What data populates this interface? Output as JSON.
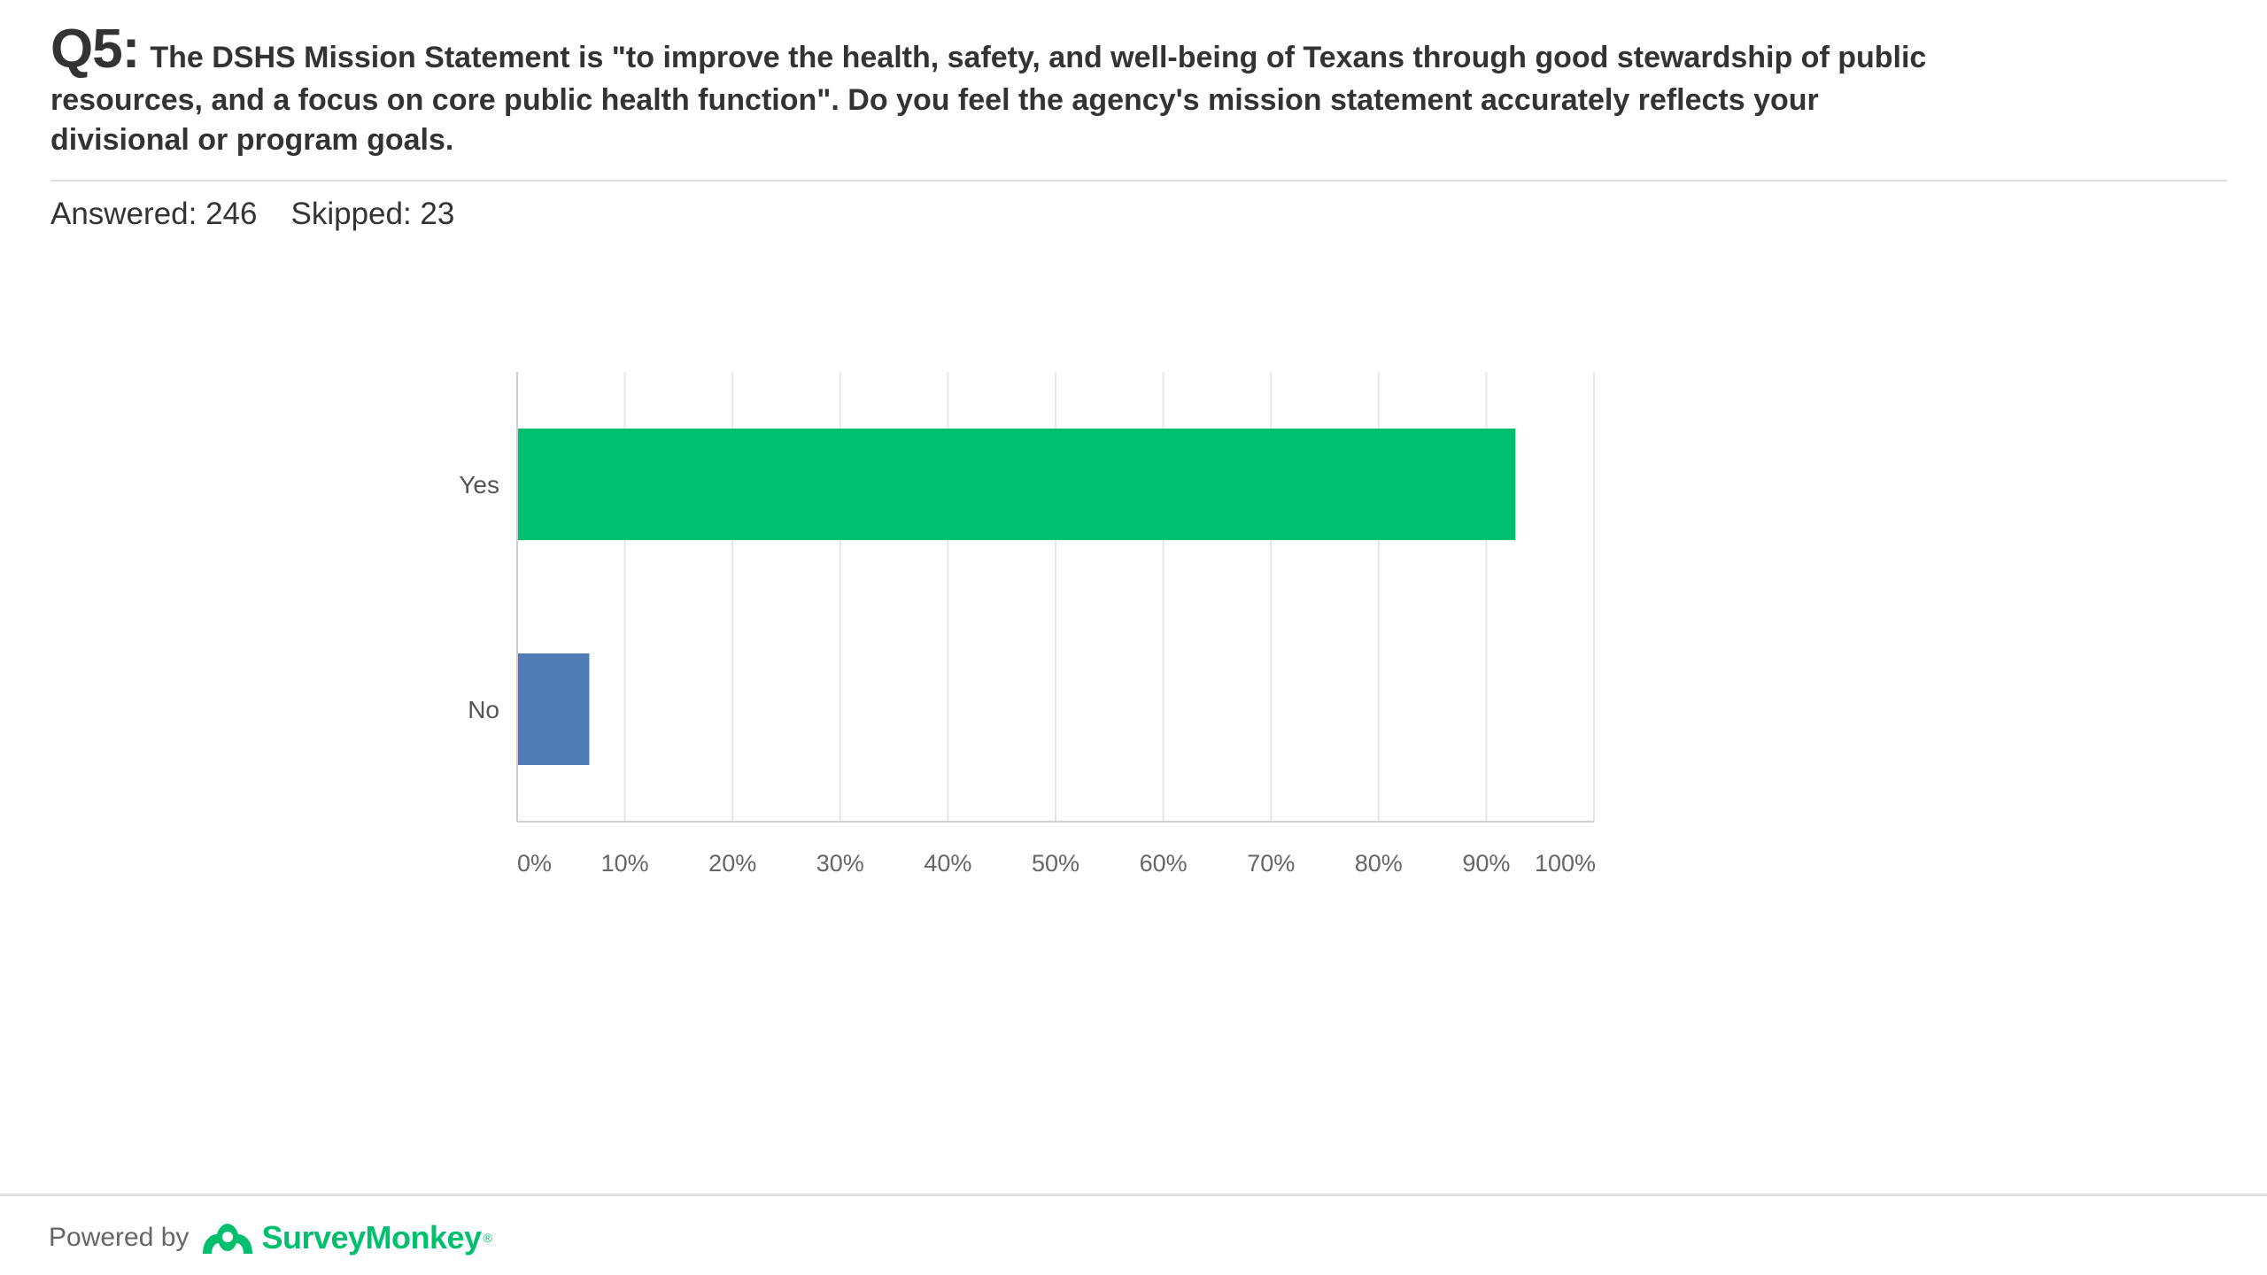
{
  "question": {
    "number": "Q5:",
    "text_line1": "The DSHS Mission Statement is \"to improve the health, safety, and well-being of Texans through good stewardship of public",
    "text_line2": "resources, and a focus on core public health function\".  Do you feel the agency's mission statement accurately reflects your",
    "text_line3": "divisional or program goals."
  },
  "stats": {
    "answered": "Answered: 246",
    "skipped": "Skipped: 23"
  },
  "chart_data": {
    "type": "bar",
    "orientation": "horizontal",
    "categories": [
      "Yes",
      "No"
    ],
    "values": [
      92.7,
      6.7
    ],
    "colors": [
      "#00bf6f",
      "#507cb6"
    ],
    "x_ticks": [
      "0%",
      "10%",
      "20%",
      "30%",
      "40%",
      "50%",
      "60%",
      "70%",
      "80%",
      "90%",
      "100%"
    ],
    "xlim": [
      0,
      100
    ],
    "grid": true,
    "title": "",
    "xlabel": "",
    "ylabel": ""
  },
  "footer": {
    "powered_by": "Powered by",
    "brand": "SurveyMonkey",
    "brand_mark": "®",
    "logo_icon": "surveymonkey-logo-icon"
  },
  "colors": {
    "accent": "#00bf6f",
    "text": "#333333",
    "grid": "#e6e6e6",
    "axis": "#d0d0d0"
  }
}
